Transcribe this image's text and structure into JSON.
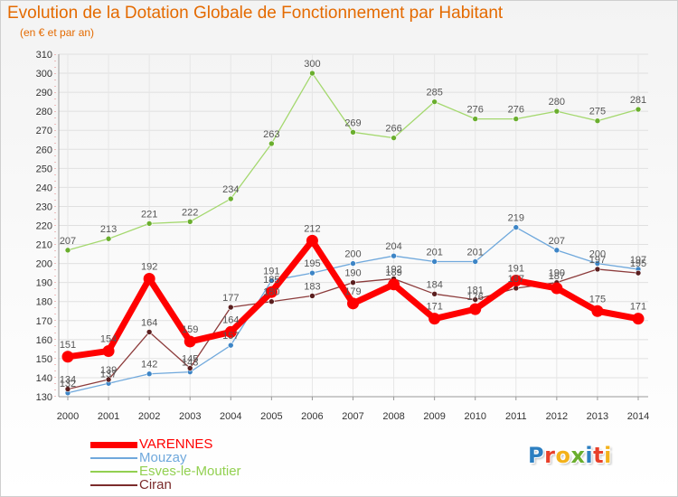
{
  "title": "Evolution de la Dotation Globale de Fonctionnement par Habitant",
  "subtitle": "(en € et par an)",
  "logo_text": "Proxiti",
  "chart_data": {
    "type": "line",
    "x": [
      "2000",
      "2001",
      "2002",
      "2003",
      "2004",
      "2005",
      "2006",
      "2007",
      "2008",
      "2009",
      "2010",
      "2011",
      "2012",
      "2013",
      "2014"
    ],
    "ylim": [
      130,
      310
    ],
    "yticks": [
      130,
      140,
      150,
      160,
      170,
      180,
      190,
      200,
      210,
      220,
      230,
      240,
      250,
      260,
      270,
      280,
      290,
      300,
      310
    ],
    "grid": true,
    "legend_position": "bottom-left",
    "series": [
      {
        "name": "VARENNES",
        "color": "#ff0000",
        "values": [
          151,
          154,
          192,
          159,
          164,
          185,
          212,
          179,
          189,
          171,
          176,
          191,
          187,
          175,
          171
        ]
      },
      {
        "name": "Mouzay",
        "color": "#6fa8dc",
        "values": [
          132,
          137,
          142,
          143,
          157,
          191,
          195,
          200,
          204,
          201,
          201,
          219,
          207,
          200,
          197
        ]
      },
      {
        "name": "Esves-le-Moutier",
        "color": "#92d050",
        "values": [
          207,
          213,
          221,
          222,
          234,
          263,
          300,
          269,
          266,
          285,
          276,
          276,
          280,
          275,
          281
        ]
      },
      {
        "name": "Ciran",
        "color": "#7b2b2b",
        "values": [
          134,
          139,
          164,
          145,
          177,
          180,
          183,
          190,
          192,
          184,
          181,
          187,
          190,
          197,
          195
        ]
      }
    ]
  }
}
